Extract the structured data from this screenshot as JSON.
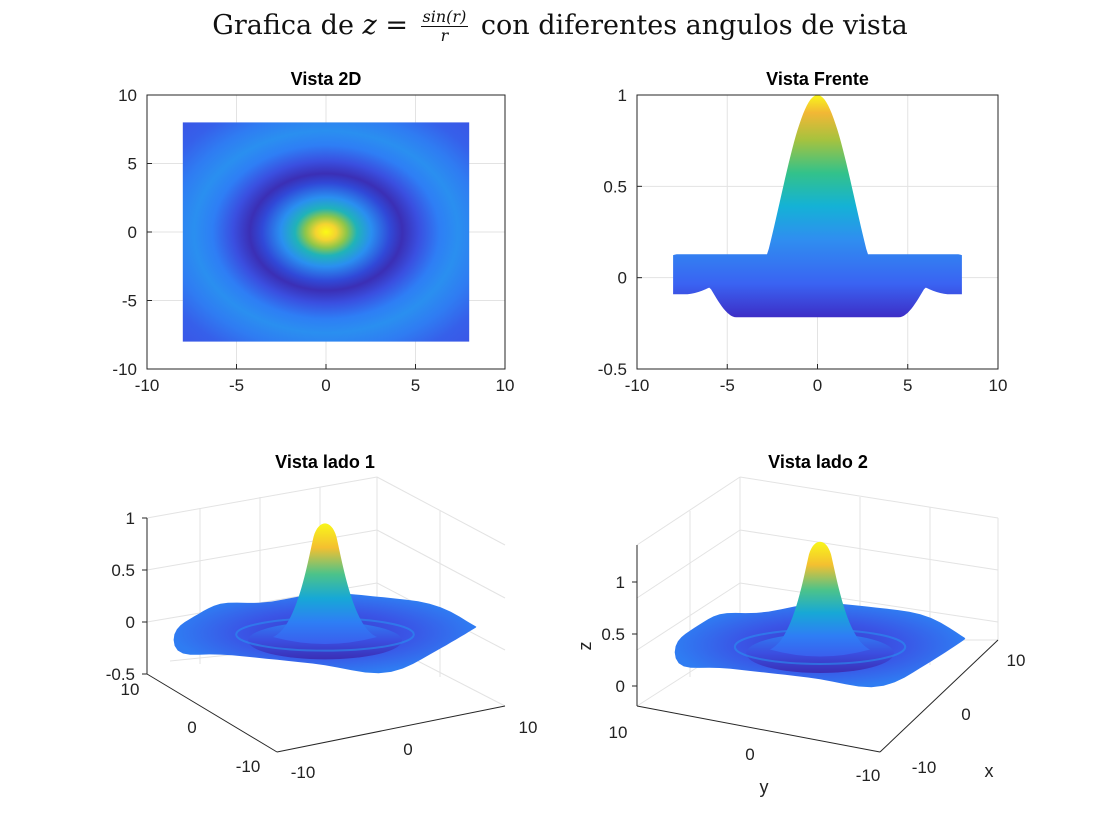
{
  "figure": {
    "title_prefix": "Grafica de ",
    "title_var": "z",
    "title_equals": " = ",
    "title_num": "sin(r)",
    "title_den": "r",
    "title_suffix": " con diferentes angulos de vista"
  },
  "chart_data": [
    {
      "type": "heatmap",
      "title": "Vista 2D",
      "function": "z = sin(r)/r, r = sqrt(x^2 + y^2)",
      "x_range": [
        -8,
        8
      ],
      "y_range": [
        -8,
        8
      ],
      "xlim": [
        -10,
        10
      ],
      "ylim": [
        -10,
        10
      ],
      "xticks": [
        -10,
        -5,
        0,
        5,
        10
      ],
      "yticks": [
        -10,
        -5,
        0,
        5,
        10
      ],
      "xlabel": "",
      "ylabel": "",
      "grid": true,
      "colormap": "parula"
    },
    {
      "type": "area",
      "title": "Vista Frente",
      "function": "z = sin(r)/r viewed along y axis",
      "x_range": [
        -8,
        8
      ],
      "xlim": [
        -10,
        10
      ],
      "ylim": [
        -0.5,
        1
      ],
      "xticks": [
        -10,
        -5,
        0,
        5,
        10
      ],
      "yticks": [
        -0.5,
        0,
        0.5,
        1
      ],
      "xlabel": "",
      "ylabel": "",
      "grid": true,
      "colormap": "parula"
    },
    {
      "type": "surface",
      "title": "Vista lado 1",
      "function": "z = sin(r)/r",
      "view": "3D default",
      "zticks": [
        -0.5,
        0,
        0.5,
        1
      ],
      "left_ticks": [
        10,
        0,
        -10
      ],
      "right_ticks": [
        -10,
        0,
        10
      ],
      "xlabel": "",
      "ylabel": "",
      "zlabel": "",
      "grid": true,
      "colormap": "parula"
    },
    {
      "type": "surface",
      "title": "Vista lado 2",
      "function": "z = sin(r)/r",
      "view": "3D rotated",
      "zticks": [
        0,
        0.5,
        1
      ],
      "left_ticks": [
        10,
        0,
        -10
      ],
      "right_ticks": [
        -10,
        0,
        10
      ],
      "xlabel": "x",
      "ylabel": "y",
      "zlabel": "z",
      "grid": true,
      "colormap": "parula"
    }
  ]
}
